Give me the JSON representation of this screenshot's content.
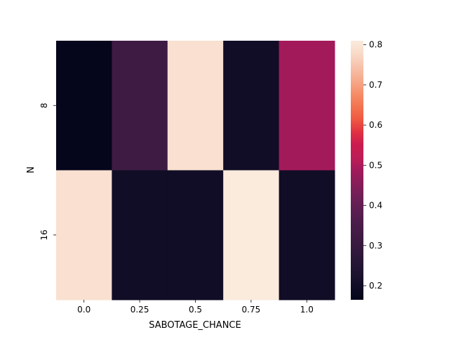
{
  "chart_data": {
    "type": "heatmap",
    "title": "",
    "xlabel": "SABOTAGE_CHANCE",
    "ylabel": "N",
    "x_categories": [
      "0.0",
      "0.25",
      "0.5",
      "0.75",
      "1.0"
    ],
    "y_categories": [
      "8",
      "16"
    ],
    "values": [
      [
        0.17,
        0.32,
        0.79,
        0.2,
        0.49
      ],
      [
        0.79,
        0.2,
        0.2,
        0.81,
        0.2
      ]
    ],
    "colorbar": {
      "min": 0.165,
      "max": 0.81,
      "ticks": [
        0.2,
        0.3,
        0.4,
        0.5,
        0.6,
        0.7,
        0.8
      ],
      "tick_labels": [
        "0.2",
        "0.3",
        "0.4",
        "0.5",
        "0.6",
        "0.7",
        "0.8"
      ],
      "colormap": "rocket"
    },
    "colormap_stops": [
      {
        "t": 0.0,
        "color": "#03051a"
      },
      {
        "t": 0.1,
        "color": "#1c1330"
      },
      {
        "t": 0.2,
        "color": "#35193e"
      },
      {
        "t": 0.3,
        "color": "#4c1d4b"
      },
      {
        "t": 0.4,
        "color": "#701f57"
      },
      {
        "t": 0.5,
        "color": "#a11a5b"
      },
      {
        "t": 0.55,
        "color": "#be1d56"
      },
      {
        "t": 0.6,
        "color": "#cb1b4f"
      },
      {
        "t": 0.65,
        "color": "#e13342"
      },
      {
        "t": 0.7,
        "color": "#f05b42"
      },
      {
        "t": 0.75,
        "color": "#f37651"
      },
      {
        "t": 0.8,
        "color": "#f6906c"
      },
      {
        "t": 0.85,
        "color": "#f6ab8d"
      },
      {
        "t": 0.9,
        "color": "#f7c2ab"
      },
      {
        "t": 0.95,
        "color": "#f9dac8"
      },
      {
        "t": 1.0,
        "color": "#faebdd"
      }
    ]
  }
}
